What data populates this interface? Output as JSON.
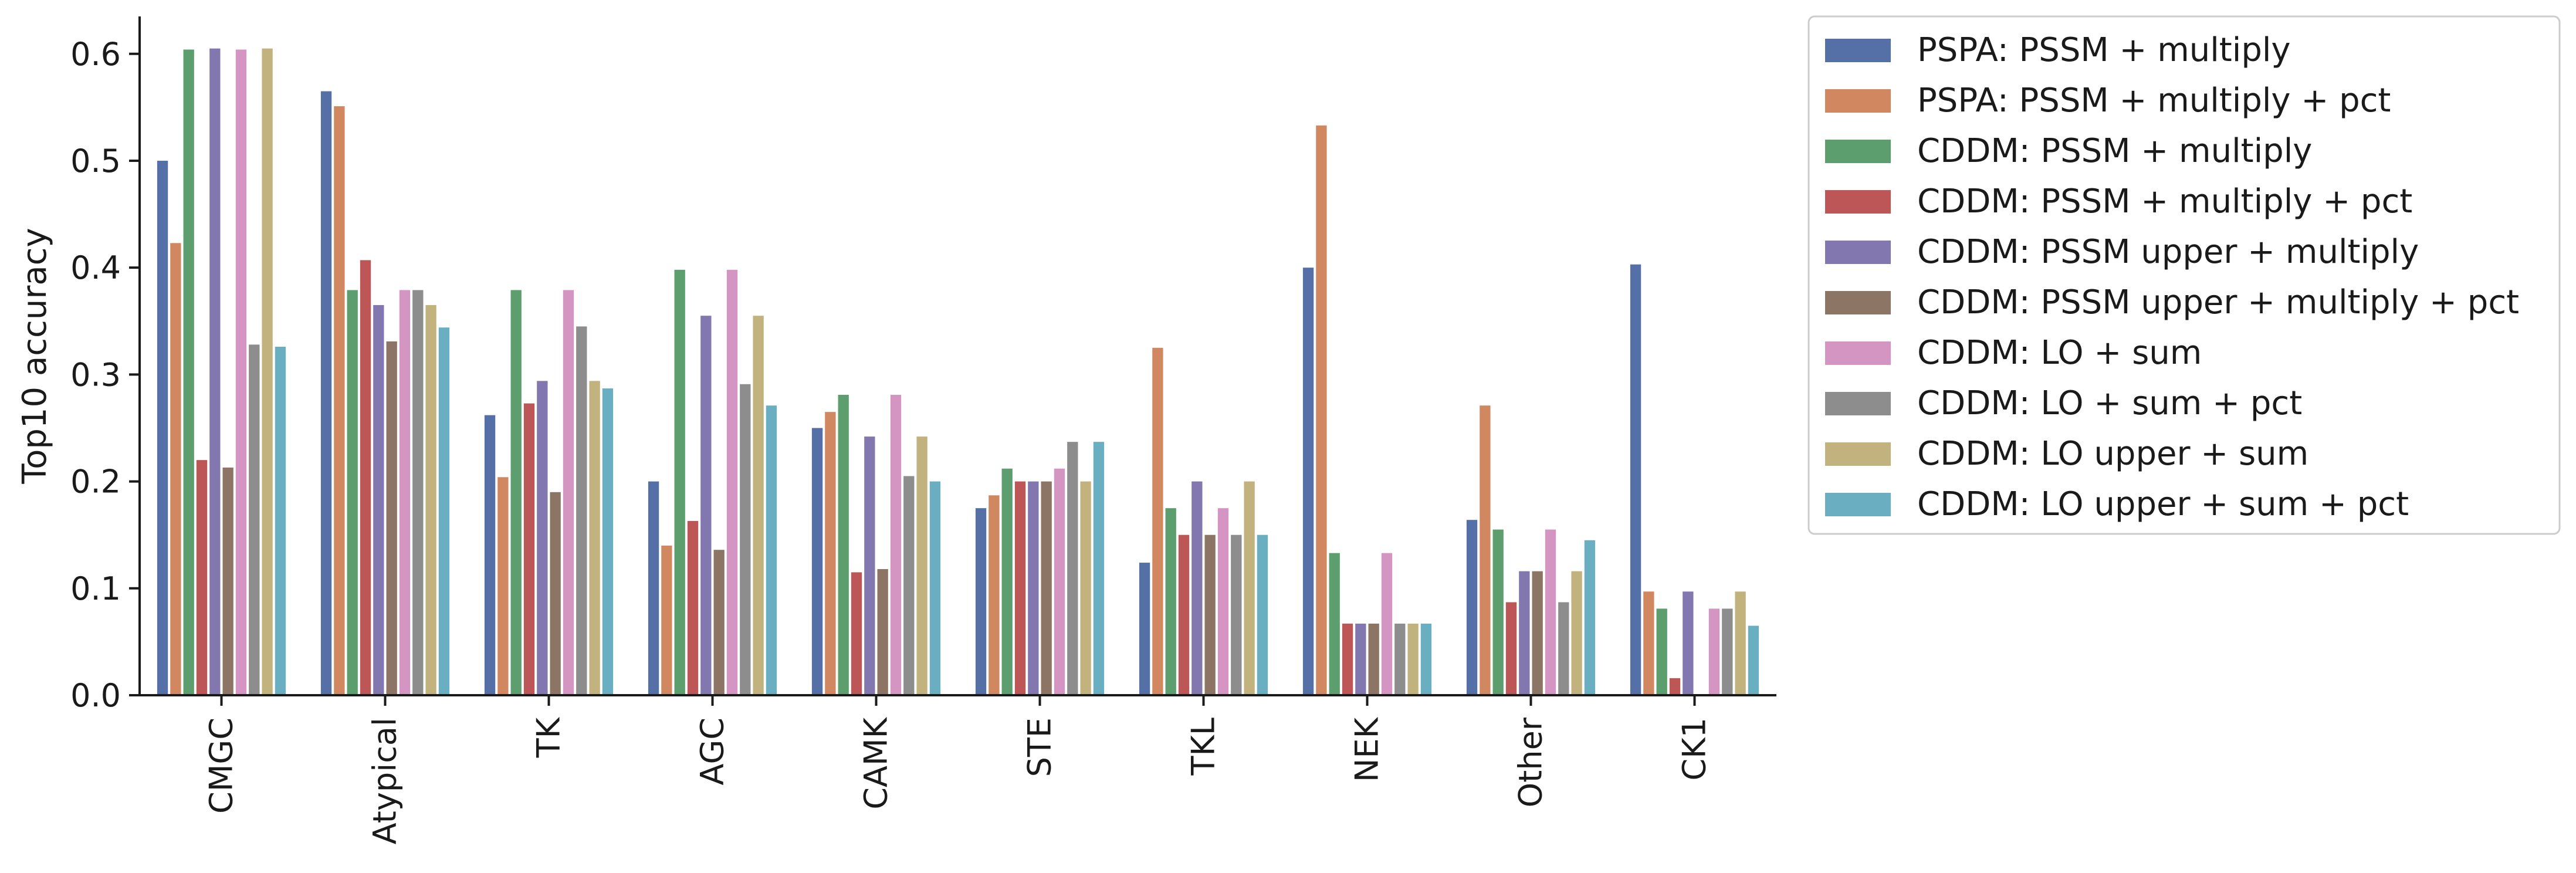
{
  "chart_data": {
    "type": "bar",
    "title": "",
    "xlabel": "",
    "ylabel": "Top10 accuracy",
    "ylim": [
      0,
      0.635
    ],
    "yticks": [
      "0.0",
      "0.1",
      "0.2",
      "0.3",
      "0.4",
      "0.5",
      "0.6"
    ],
    "legend_position": "outside-right",
    "grid": false,
    "categories": [
      "CMGC",
      "Atypical",
      "TK",
      "AGC",
      "CAMK",
      "STE",
      "TKL",
      "NEK",
      "Other",
      "CK1"
    ],
    "series": [
      {
        "name": "PSPA: PSSM + multiply",
        "color": "#5470a7",
        "values": [
          0.5,
          0.565,
          0.262,
          0.2,
          0.25,
          0.175,
          0.124,
          0.4,
          0.164,
          0.403
        ]
      },
      {
        "name": "PSPA: PSSM + multiply + pct",
        "color": "#d1875f",
        "values": [
          0.423,
          0.551,
          0.204,
          0.14,
          0.265,
          0.187,
          0.325,
          0.533,
          0.271,
          0.097
        ]
      },
      {
        "name": "CDDM: PSSM + multiply",
        "color": "#5d9e6f",
        "values": [
          0.604,
          0.379,
          0.379,
          0.398,
          0.281,
          0.212,
          0.175,
          0.133,
          0.155,
          0.081
        ]
      },
      {
        "name": "CDDM: PSSM + multiply + pct",
        "color": "#bd5656",
        "values": [
          0.22,
          0.407,
          0.273,
          0.163,
          0.115,
          0.2,
          0.15,
          0.067,
          0.087,
          0.016
        ]
      },
      {
        "name": "CDDM: PSSM upper + multiply",
        "color": "#8377b0",
        "values": [
          0.605,
          0.365,
          0.294,
          0.355,
          0.242,
          0.2,
          0.2,
          0.067,
          0.116,
          0.097
        ]
      },
      {
        "name": "CDDM: PSSM upper + multiply + pct",
        "color": "#8c7564",
        "values": [
          0.213,
          0.331,
          0.19,
          0.136,
          0.118,
          0.2,
          0.15,
          0.067,
          0.116,
          0.0
        ]
      },
      {
        "name": "CDDM: LO + sum",
        "color": "#d495c3",
        "values": [
          0.604,
          0.379,
          0.379,
          0.398,
          0.281,
          0.212,
          0.175,
          0.133,
          0.155,
          0.081
        ]
      },
      {
        "name": "CDDM: LO + sum + pct",
        "color": "#8d8d8d",
        "values": [
          0.328,
          0.379,
          0.345,
          0.291,
          0.205,
          0.237,
          0.15,
          0.067,
          0.087,
          0.081
        ]
      },
      {
        "name": "CDDM: LO upper + sum",
        "color": "#c2b37e",
        "values": [
          0.605,
          0.365,
          0.294,
          0.355,
          0.242,
          0.2,
          0.2,
          0.067,
          0.116,
          0.097
        ]
      },
      {
        "name": "CDDM: LO upper + sum + pct",
        "color": "#6aaec1",
        "values": [
          0.326,
          0.344,
          0.287,
          0.271,
          0.2,
          0.237,
          0.15,
          0.067,
          0.145,
          0.065
        ]
      }
    ]
  }
}
